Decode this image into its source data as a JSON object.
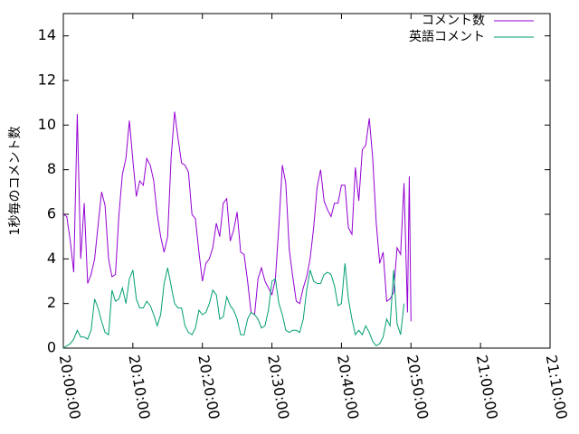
{
  "chart_data": {
    "type": "line",
    "ylabel": "1秒毎のコメント数",
    "xlabel": "",
    "ylim": [
      0,
      15
    ],
    "xlim": [
      "20:00:00",
      "21:10:00"
    ],
    "yticks": [
      0,
      2,
      4,
      6,
      8,
      10,
      12,
      14
    ],
    "xticks": [
      "20:00:00",
      "20:10:00",
      "20:20:00",
      "20:30:00",
      "20:40:00",
      "20:50:00",
      "21:00:00",
      "21:10:00"
    ],
    "grid": false,
    "legend_position": "top-right",
    "series": [
      {
        "name": "コメント数",
        "color": "#9400d3",
        "points": [
          [
            "20:00:00",
            6.0
          ],
          [
            "20:00:30",
            5.9
          ],
          [
            "20:01:00",
            4.8
          ],
          [
            "20:01:30",
            3.4
          ],
          [
            "20:02:00",
            10.5
          ],
          [
            "20:02:30",
            4.0
          ],
          [
            "20:03:00",
            6.5
          ],
          [
            "20:03:30",
            2.9
          ],
          [
            "20:04:00",
            3.3
          ],
          [
            "20:04:30",
            4.0
          ],
          [
            "20:05:00",
            5.5
          ],
          [
            "20:05:30",
            7.0
          ],
          [
            "20:06:00",
            6.4
          ],
          [
            "20:06:30",
            4.0
          ],
          [
            "20:07:00",
            3.2
          ],
          [
            "20:07:30",
            3.3
          ],
          [
            "20:08:00",
            6.0
          ],
          [
            "20:08:30",
            7.8
          ],
          [
            "20:09:00",
            8.5
          ],
          [
            "20:09:30",
            10.2
          ],
          [
            "20:10:00",
            8.4
          ],
          [
            "20:10:30",
            6.8
          ],
          [
            "20:11:00",
            7.5
          ],
          [
            "20:11:30",
            7.3
          ],
          [
            "20:12:00",
            8.5
          ],
          [
            "20:12:30",
            8.2
          ],
          [
            "20:13:00",
            7.5
          ],
          [
            "20:13:30",
            6.0
          ],
          [
            "20:14:00",
            5.0
          ],
          [
            "20:14:30",
            4.3
          ],
          [
            "20:15:00",
            5.0
          ],
          [
            "20:15:30",
            8.5
          ],
          [
            "20:16:00",
            10.6
          ],
          [
            "20:16:30",
            9.4
          ],
          [
            "20:17:00",
            8.3
          ],
          [
            "20:17:30",
            8.2
          ],
          [
            "20:18:00",
            7.9
          ],
          [
            "20:18:30",
            6.0
          ],
          [
            "20:19:00",
            5.8
          ],
          [
            "20:19:30",
            4.3
          ],
          [
            "20:20:00",
            3.0
          ],
          [
            "20:20:30",
            3.8
          ],
          [
            "20:21:00",
            4.0
          ],
          [
            "20:21:30",
            4.5
          ],
          [
            "20:22:00",
            5.6
          ],
          [
            "20:22:30",
            5.0
          ],
          [
            "20:23:00",
            6.5
          ],
          [
            "20:23:30",
            6.7
          ],
          [
            "20:24:00",
            4.8
          ],
          [
            "20:24:30",
            5.3
          ],
          [
            "20:25:00",
            6.1
          ],
          [
            "20:25:30",
            4.3
          ],
          [
            "20:26:00",
            4.2
          ],
          [
            "20:26:30",
            3.0
          ],
          [
            "20:27:00",
            1.6
          ],
          [
            "20:27:30",
            1.5
          ],
          [
            "20:28:00",
            3.1
          ],
          [
            "20:28:30",
            3.6
          ],
          [
            "20:29:00",
            3.0
          ],
          [
            "20:29:30",
            2.7
          ],
          [
            "20:30:00",
            2.4
          ],
          [
            "20:30:30",
            3.1
          ],
          [
            "20:31:00",
            5.5
          ],
          [
            "20:31:30",
            8.2
          ],
          [
            "20:32:00",
            7.4
          ],
          [
            "20:32:30",
            4.4
          ],
          [
            "20:33:00",
            3.2
          ],
          [
            "20:33:30",
            2.1
          ],
          [
            "20:34:00",
            2.0
          ],
          [
            "20:34:30",
            2.7
          ],
          [
            "20:35:00",
            3.2
          ],
          [
            "20:35:30",
            4.0
          ],
          [
            "20:36:00",
            5.4
          ],
          [
            "20:36:30",
            7.2
          ],
          [
            "20:37:00",
            8.0
          ],
          [
            "20:37:30",
            6.6
          ],
          [
            "20:38:00",
            6.2
          ],
          [
            "20:38:30",
            5.9
          ],
          [
            "20:39:00",
            6.5
          ],
          [
            "20:39:30",
            6.5
          ],
          [
            "20:40:00",
            7.3
          ],
          [
            "20:40:30",
            7.3
          ],
          [
            "20:41:00",
            5.4
          ],
          [
            "20:41:30",
            5.1
          ],
          [
            "20:42:00",
            8.1
          ],
          [
            "20:42:30",
            6.6
          ],
          [
            "20:43:00",
            8.9
          ],
          [
            "20:43:30",
            9.1
          ],
          [
            "20:44:00",
            10.3
          ],
          [
            "20:44:30",
            8.5
          ],
          [
            "20:45:00",
            5.6
          ],
          [
            "20:45:30",
            3.8
          ],
          [
            "20:46:00",
            4.3
          ],
          [
            "20:46:30",
            2.1
          ],
          [
            "20:47:00",
            2.2
          ],
          [
            "20:47:30",
            2.5
          ],
          [
            "20:48:00",
            4.5
          ],
          [
            "20:48:30",
            4.2
          ],
          [
            "20:49:00",
            7.4
          ],
          [
            "20:49:30",
            1.6
          ],
          [
            "20:49:45",
            7.7
          ],
          [
            "20:50:00",
            1.2
          ]
        ]
      },
      {
        "name": "英語コメント",
        "color": "#009e73",
        "points": [
          [
            "20:00:00",
            0.0
          ],
          [
            "20:00:30",
            0.1
          ],
          [
            "20:01:00",
            0.2
          ],
          [
            "20:01:30",
            0.4
          ],
          [
            "20:02:00",
            0.8
          ],
          [
            "20:02:30",
            0.5
          ],
          [
            "20:03:00",
            0.5
          ],
          [
            "20:03:30",
            0.4
          ],
          [
            "20:04:00",
            0.8
          ],
          [
            "20:04:30",
            2.2
          ],
          [
            "20:05:00",
            1.8
          ],
          [
            "20:05:30",
            1.2
          ],
          [
            "20:06:00",
            0.7
          ],
          [
            "20:06:30",
            0.6
          ],
          [
            "20:07:00",
            2.6
          ],
          [
            "20:07:30",
            2.1
          ],
          [
            "20:08:00",
            2.2
          ],
          [
            "20:08:30",
            2.7
          ],
          [
            "20:09:00",
            2.0
          ],
          [
            "20:09:30",
            3.1
          ],
          [
            "20:10:00",
            3.5
          ],
          [
            "20:10:30",
            2.2
          ],
          [
            "20:11:00",
            1.8
          ],
          [
            "20:11:30",
            1.8
          ],
          [
            "20:12:00",
            2.1
          ],
          [
            "20:12:30",
            1.9
          ],
          [
            "20:13:00",
            1.5
          ],
          [
            "20:13:30",
            1.0
          ],
          [
            "20:14:00",
            1.5
          ],
          [
            "20:14:30",
            2.9
          ],
          [
            "20:15:00",
            3.6
          ],
          [
            "20:15:30",
            2.8
          ],
          [
            "20:16:00",
            2.0
          ],
          [
            "20:16:30",
            1.8
          ],
          [
            "20:17:00",
            1.8
          ],
          [
            "20:17:30",
            1.0
          ],
          [
            "20:18:00",
            0.7
          ],
          [
            "20:18:30",
            0.6
          ],
          [
            "20:19:00",
            0.9
          ],
          [
            "20:19:30",
            1.7
          ],
          [
            "20:20:00",
            1.5
          ],
          [
            "20:20:30",
            1.6
          ],
          [
            "20:21:00",
            2.0
          ],
          [
            "20:21:30",
            2.6
          ],
          [
            "20:22:00",
            2.4
          ],
          [
            "20:22:30",
            1.3
          ],
          [
            "20:23:00",
            1.4
          ],
          [
            "20:23:30",
            2.3
          ],
          [
            "20:24:00",
            1.9
          ],
          [
            "20:24:30",
            1.7
          ],
          [
            "20:25:00",
            1.3
          ],
          [
            "20:25:30",
            0.6
          ],
          [
            "20:26:00",
            0.6
          ],
          [
            "20:26:30",
            1.3
          ],
          [
            "20:27:00",
            1.6
          ],
          [
            "20:27:30",
            1.5
          ],
          [
            "20:28:00",
            1.3
          ],
          [
            "20:28:30",
            0.9
          ],
          [
            "20:29:00",
            1.0
          ],
          [
            "20:29:30",
            1.7
          ],
          [
            "20:30:00",
            3.0
          ],
          [
            "20:30:30",
            3.1
          ],
          [
            "20:31:00",
            2.0
          ],
          [
            "20:31:30",
            1.5
          ],
          [
            "20:32:00",
            0.8
          ],
          [
            "20:32:30",
            0.7
          ],
          [
            "20:33:00",
            0.8
          ],
          [
            "20:33:30",
            0.8
          ],
          [
            "20:34:00",
            0.7
          ],
          [
            "20:34:30",
            1.3
          ],
          [
            "20:35:00",
            2.6
          ],
          [
            "20:35:30",
            3.5
          ],
          [
            "20:36:00",
            3.0
          ],
          [
            "20:36:30",
            2.9
          ],
          [
            "20:37:00",
            2.9
          ],
          [
            "20:37:30",
            3.3
          ],
          [
            "20:38:00",
            3.4
          ],
          [
            "20:38:30",
            3.3
          ],
          [
            "20:39:00",
            2.8
          ],
          [
            "20:39:30",
            1.9
          ],
          [
            "20:40:00",
            2.0
          ],
          [
            "20:40:30",
            3.8
          ],
          [
            "20:41:00",
            2.2
          ],
          [
            "20:41:30",
            1.3
          ],
          [
            "20:42:00",
            0.6
          ],
          [
            "20:42:30",
            0.8
          ],
          [
            "20:43:00",
            0.6
          ],
          [
            "20:43:30",
            1.0
          ],
          [
            "20:44:00",
            0.7
          ],
          [
            "20:44:30",
            0.3
          ],
          [
            "20:45:00",
            0.1
          ],
          [
            "20:45:30",
            0.2
          ],
          [
            "20:46:00",
            0.5
          ],
          [
            "20:46:30",
            1.3
          ],
          [
            "20:47:00",
            1.0
          ],
          [
            "20:47:30",
            3.5
          ],
          [
            "20:48:00",
            1.1
          ],
          [
            "20:48:30",
            0.6
          ],
          [
            "20:49:00",
            2.0
          ]
        ]
      }
    ]
  }
}
